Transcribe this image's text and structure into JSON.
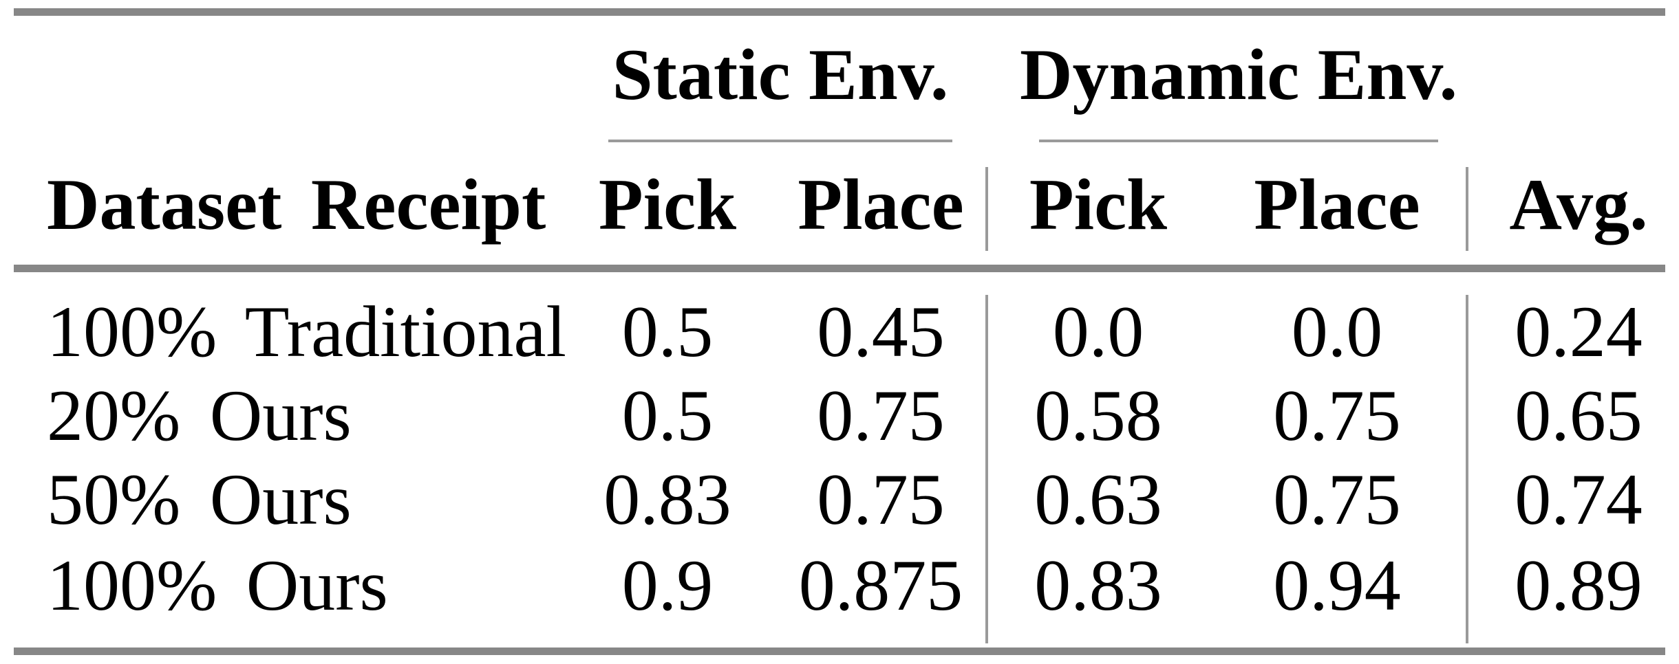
{
  "table": {
    "col_groups": [
      {
        "label": "Static Env."
      },
      {
        "label": "Dynamic Env."
      }
    ],
    "row_header_label": "Dataset Receipt",
    "sub_columns": [
      "Pick",
      "Place",
      "Pick",
      "Place"
    ],
    "avg_label": "Avg.",
    "rows": [
      {
        "label": "100% Traditional",
        "values": [
          "0.5",
          "0.45",
          "0.0",
          "0.0",
          "0.24"
        ]
      },
      {
        "label": "20% Ours",
        "values": [
          "0.5",
          "0.75",
          "0.58",
          "0.75",
          "0.65"
        ]
      },
      {
        "label": "50% Ours",
        "values": [
          "0.83",
          "0.75",
          "0.63",
          "0.75",
          "0.74"
        ]
      },
      {
        "label": "100% Ours",
        "values": [
          "0.9",
          "0.875",
          "0.83",
          "0.94",
          "0.89"
        ]
      }
    ]
  },
  "chart_data": {
    "type": "table",
    "columns": [
      "Dataset Receipt",
      "Static Env. Pick",
      "Static Env. Place",
      "Dynamic Env. Pick",
      "Dynamic Env. Place",
      "Avg."
    ],
    "rows": [
      [
        "100% Traditional",
        0.5,
        0.45,
        0.0,
        0.0,
        0.24
      ],
      [
        "20% Ours",
        0.5,
        0.75,
        0.58,
        0.75,
        0.65
      ],
      [
        "50% Ours",
        0.83,
        0.75,
        0.63,
        0.75,
        0.74
      ],
      [
        "100% Ours",
        0.9,
        0.875,
        0.83,
        0.94,
        0.89
      ]
    ]
  },
  "colors": {
    "background": "#ffffff",
    "text": "#000000",
    "rule_thick": "#878787",
    "rule_thin": "#9a9a9a"
  }
}
